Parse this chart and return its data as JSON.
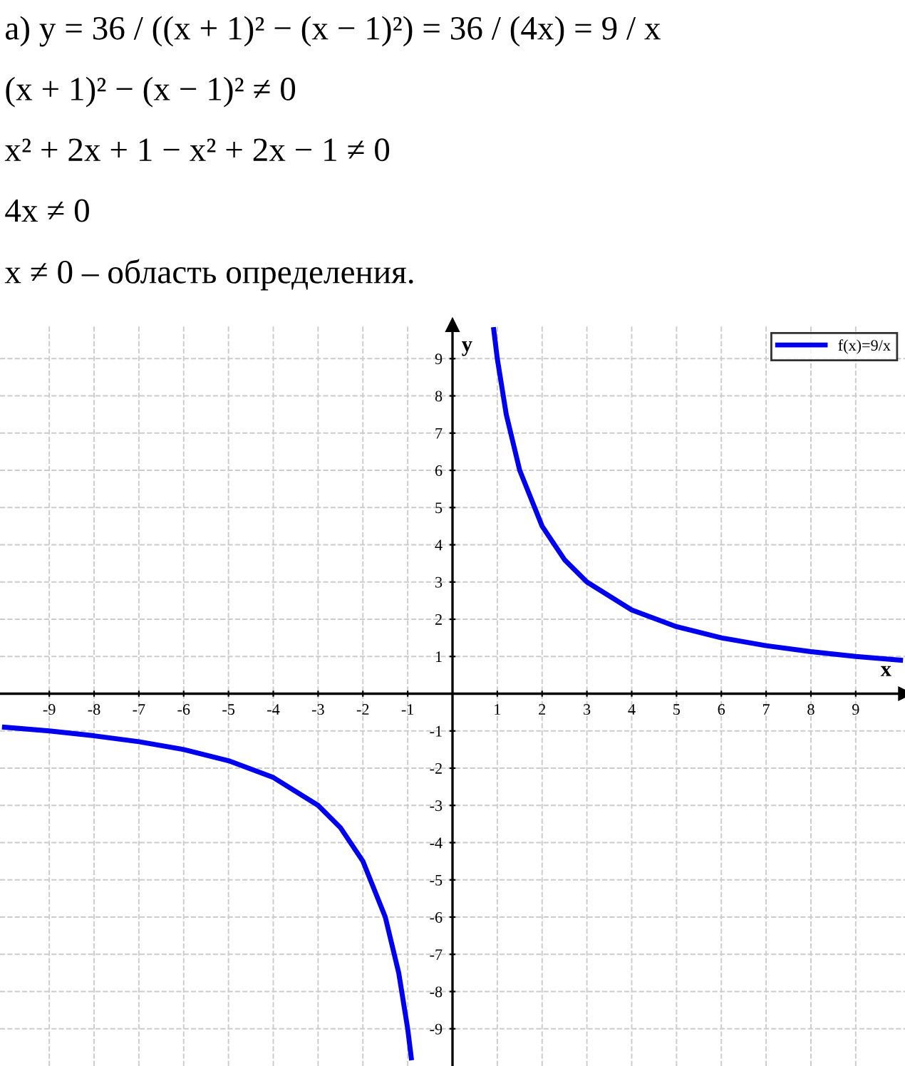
{
  "chart_data": {
    "type": "line",
    "xlabel": "x",
    "ylabel": "y",
    "annotations": [
      "а) y = 36 / ((x + 1)² − (x − 1)²) = 36 / (4x) = 9 / x",
      "(x + 1)² − (x − 1)² ≠ 0",
      "x² + 2x + 1 − x² + 2x − 1 ≠ 0",
      "4x ≠ 0",
      "x ≠ 0 – область определения."
    ],
    "x": [
      -10,
      -9,
      -8,
      -7,
      -6,
      -5,
      -4,
      -3,
      -2.5,
      -2,
      -1.5,
      -1.2,
      -1,
      -0.92,
      null,
      0.92,
      1,
      1.2,
      1.5,
      2,
      2.5,
      3,
      4,
      5,
      6,
      7,
      8,
      9,
      10
    ],
    "series": [
      {
        "name": "f(x)=9/x",
        "color": "#0000ee",
        "values": [
          -0.9,
          -1,
          -1.13,
          -1.29,
          -1.5,
          -1.8,
          -2.25,
          -3,
          -3.6,
          -4.5,
          -6,
          -7.5,
          -9,
          -9.78,
          null,
          9.78,
          9,
          7.5,
          6,
          4.5,
          3.6,
          3,
          2.25,
          1.8,
          1.5,
          1.29,
          1.13,
          1,
          0.9
        ]
      }
    ],
    "xlim": [
      -10.1,
      10.1
    ],
    "ylim": [
      -10,
      9.9
    ],
    "xticks": [
      -9,
      -8,
      -7,
      -6,
      -5,
      -4,
      -3,
      -2,
      -1,
      1,
      2,
      3,
      4,
      5,
      6,
      7,
      8,
      9
    ],
    "yticks": [
      -9,
      -8,
      -7,
      -6,
      -5,
      -4,
      -3,
      -2,
      -1,
      1,
      2,
      3,
      4,
      5,
      6,
      7,
      8,
      9
    ],
    "grid": true,
    "legend": "top right",
    "marker": "none",
    "line_style": "solid"
  }
}
